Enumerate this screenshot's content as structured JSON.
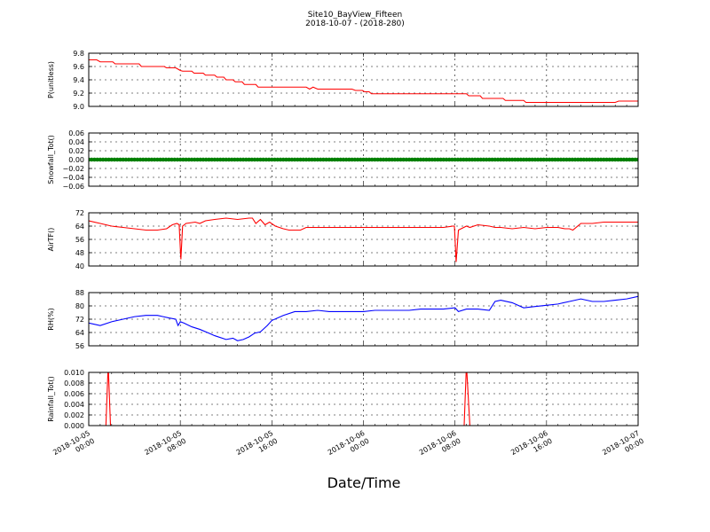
{
  "title": "Site10_BayView_Fifteen",
  "subtitle": "2018-10-07 - (2018-280)",
  "xlabel": "Date/Time",
  "x_ticks": [
    {
      "t": 0,
      "line1": "2018-10-05",
      "line2": "00:00"
    },
    {
      "t": 8,
      "line1": "2018-10-05",
      "line2": "08:00"
    },
    {
      "t": 16,
      "line1": "2018-10-05",
      "line2": "16:00"
    },
    {
      "t": 24,
      "line1": "2018-10-06",
      "line2": "00:00"
    },
    {
      "t": 32,
      "line1": "2018-10-06",
      "line2": "08:00"
    },
    {
      "t": 40,
      "line1": "2018-10-06",
      "line2": "16:00"
    },
    {
      "t": 48,
      "line1": "2018-10-07",
      "line2": "00:00"
    }
  ],
  "chart_data": [
    {
      "type": "line",
      "ylabel": "P(unitless)",
      "ylim": [
        9.0,
        9.8
      ],
      "yticks": [
        "9.0",
        "9.2",
        "9.4",
        "9.6",
        "9.8"
      ],
      "grid": true,
      "series": [
        {
          "color": "#ff0000",
          "x": [
            0,
            0.7,
            1.0,
            2.1,
            2.3,
            4.4,
            4.6,
            6.6,
            6.8,
            7.6,
            7.8,
            8.0,
            8.2,
            9.0,
            9.2,
            10.0,
            10.2,
            11.0,
            11.2,
            11.8,
            12.0,
            12.6,
            12.8,
            13.4,
            13.6,
            14.6,
            14.8,
            19.0,
            19.3,
            19.6,
            20.0,
            23.0,
            23.3,
            23.9,
            24.1,
            24.5,
            24.7,
            25.0,
            33.0,
            33.2,
            34.2,
            34.4,
            36.2,
            36.4,
            38.0,
            38.2,
            46.0,
            46.3,
            48.0
          ],
          "y": [
            9.7,
            9.7,
            9.67,
            9.67,
            9.64,
            9.64,
            9.6,
            9.6,
            9.58,
            9.58,
            9.56,
            9.54,
            9.53,
            9.53,
            9.5,
            9.5,
            9.47,
            9.47,
            9.44,
            9.44,
            9.4,
            9.4,
            9.37,
            9.37,
            9.33,
            9.33,
            9.29,
            9.29,
            9.26,
            9.29,
            9.26,
            9.26,
            9.24,
            9.24,
            9.22,
            9.22,
            9.19,
            9.19,
            9.19,
            9.16,
            9.16,
            9.12,
            9.12,
            9.09,
            9.09,
            9.06,
            9.06,
            9.08,
            9.08
          ]
        }
      ]
    },
    {
      "type": "scatter",
      "ylabel": "Snowfall_Tot()",
      "ylim": [
        -0.06,
        0.06
      ],
      "yticks": [
        "−0.06",
        "−0.04",
        "−0.02",
        "0.00",
        "0.02",
        "0.04",
        "0.06"
      ],
      "grid": true,
      "series": [
        {
          "color": "#007f00",
          "x_start": 0,
          "x_end": 48,
          "x_step": 0.25,
          "constant_y": 0.0
        }
      ]
    },
    {
      "type": "line",
      "ylabel": "AirTF()",
      "ylim": [
        35,
        75
      ],
      "yticks": [
        "40",
        "48",
        "56",
        "64",
        "72"
      ],
      "grid": true,
      "series": [
        {
          "color": "#ff0000",
          "x": [
            0,
            1,
            2,
            3,
            4,
            5,
            6,
            6.8,
            7.3,
            7.7,
            7.9,
            8.05,
            8.2,
            8.5,
            9.3,
            9.7,
            10.2,
            11,
            12,
            13,
            14,
            14.3,
            14.6,
            15,
            15.4,
            15.8,
            16.3,
            17,
            17.5,
            18,
            18.5,
            19,
            21,
            23,
            25,
            28,
            31,
            31.8,
            31.95,
            32.1,
            32.3,
            33.0,
            33.3,
            34,
            35,
            35.5,
            36,
            37,
            38,
            39,
            40,
            41,
            41.6,
            42,
            42.3,
            43,
            44,
            45,
            46,
            47,
            48
          ],
          "y": [
            69,
            67,
            65,
            64,
            63,
            62,
            62,
            63,
            66,
            67,
            66,
            40,
            65,
            67,
            68,
            67,
            69,
            70,
            71,
            70,
            71,
            71,
            67,
            70,
            66,
            68,
            65,
            63,
            62,
            62,
            62,
            64,
            64,
            64,
            64,
            64,
            64,
            65,
            65,
            38,
            62,
            65,
            64,
            66,
            65,
            64,
            64,
            63,
            64,
            63,
            64,
            64,
            63,
            63,
            62,
            67,
            67,
            68,
            68,
            68,
            68
          ]
        }
      ]
    },
    {
      "type": "line",
      "ylabel": "RH(%)",
      "ylim": [
        50,
        92
      ],
      "yticks": [
        "56",
        "64",
        "72",
        "80",
        "88"
      ],
      "grid": true,
      "series": [
        {
          "color": "#0000ff",
          "x": [
            0,
            1,
            2,
            3,
            4,
            5,
            6,
            6.5,
            7,
            7.6,
            7.8,
            8,
            8.3,
            9,
            9.7,
            10.5,
            11,
            12,
            12.6,
            13,
            13.5,
            14,
            14.5,
            15,
            15.6,
            16,
            16.5,
            17,
            18,
            19,
            20,
            21,
            22,
            23,
            24,
            25,
            26,
            27,
            28,
            29,
            30,
            31,
            32,
            32.3,
            33,
            34,
            35,
            35.5,
            36,
            37,
            38,
            39,
            40,
            41,
            42,
            43,
            44,
            45,
            46,
            47,
            48
          ],
          "y": [
            68,
            66,
            69,
            71,
            73,
            74,
            74,
            73,
            72,
            71,
            66,
            69,
            68,
            65,
            63,
            60,
            58,
            55,
            56,
            54,
            55,
            57,
            60,
            61,
            66,
            70,
            72,
            74,
            77,
            77,
            78,
            77,
            77,
            77,
            77,
            78,
            78,
            78,
            78,
            79,
            79,
            79,
            80,
            77,
            79,
            79,
            78,
            85,
            86,
            84,
            80,
            81,
            82,
            83,
            85,
            87,
            85,
            85,
            86,
            87,
            89
          ]
        }
      ]
    },
    {
      "type": "line",
      "ylabel": "Rainfall_Tot()",
      "ylim": [
        0,
        0.01
      ],
      "yticks": [
        "0.000",
        "0.002",
        "0.004",
        "0.006",
        "0.008",
        "0.010"
      ],
      "grid": true,
      "series": [
        {
          "color": "#ff0000",
          "x": [
            0,
            1.5,
            1.7,
            1.9,
            32.8,
            33.0,
            33.3,
            48
          ],
          "y": [
            0,
            0,
            0.0115,
            0,
            0,
            0.0115,
            0,
            0
          ]
        }
      ]
    }
  ]
}
